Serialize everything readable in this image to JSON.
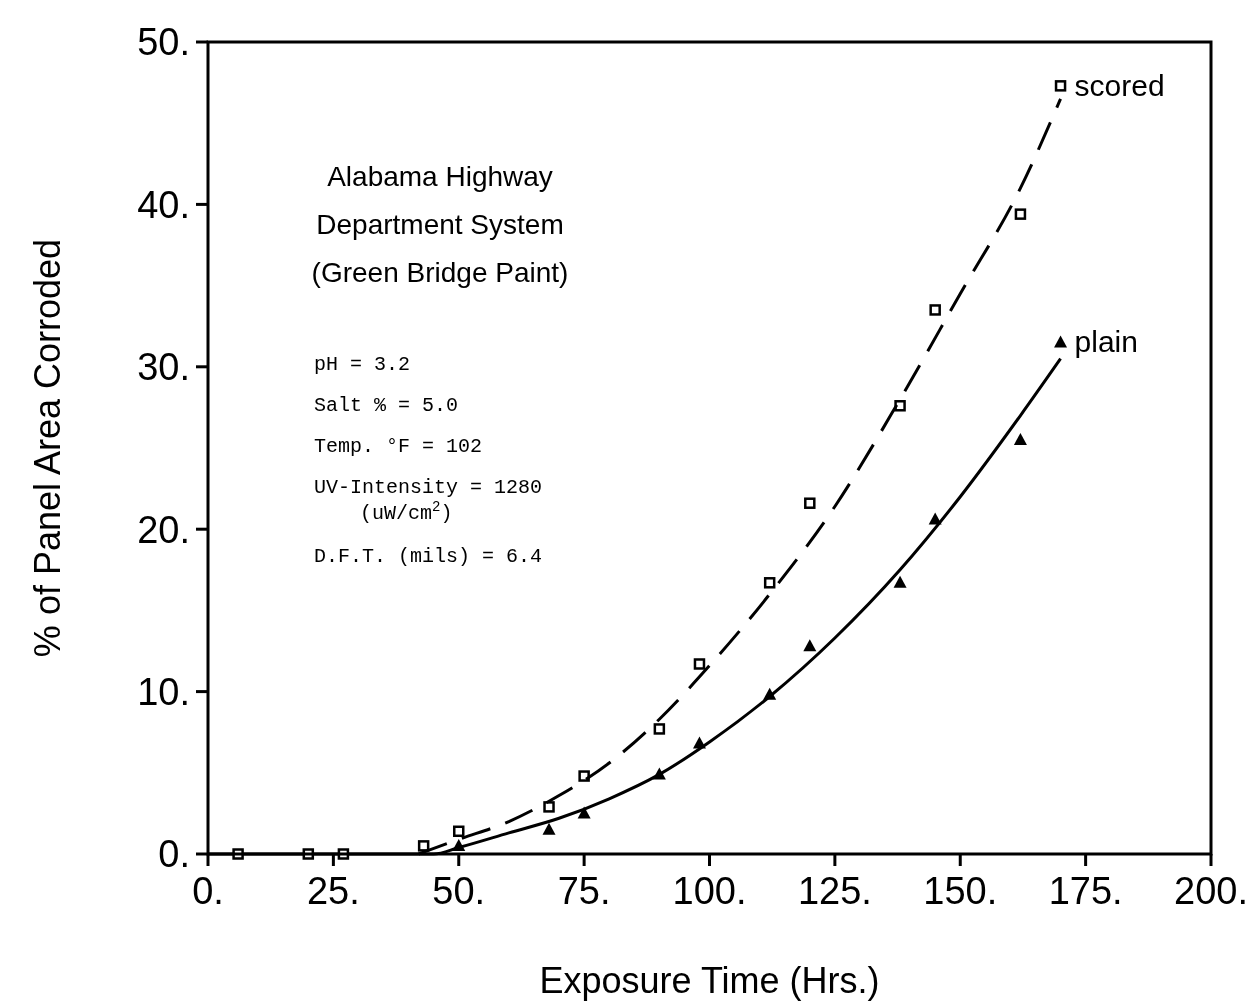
{
  "chart_data": {
    "type": "scatter",
    "title": "Alabama Highway\nDepartment System\n(Green Bridge Paint)",
    "xlabel": "Exposure Time (Hrs.)",
    "ylabel": "% of Panel Area Corroded",
    "xlim": [
      0,
      200
    ],
    "ylim": [
      0,
      50
    ],
    "xticks": [
      {
        "value": 0,
        "label": "0."
      },
      {
        "value": 25,
        "label": "25."
      },
      {
        "value": 50,
        "label": "50."
      },
      {
        "value": 75,
        "label": "75."
      },
      {
        "value": 100,
        "label": "100."
      },
      {
        "value": 125,
        "label": "125."
      },
      {
        "value": 150,
        "label": "150."
      },
      {
        "value": 175,
        "label": "175."
      },
      {
        "value": 200,
        "label": "200."
      }
    ],
    "yticks": [
      {
        "value": 0,
        "label": "0."
      },
      {
        "value": 10,
        "label": "10."
      },
      {
        "value": 20,
        "label": "20."
      },
      {
        "value": 30,
        "label": "30."
      },
      {
        "value": 40,
        "label": "40."
      },
      {
        "value": 50,
        "label": "50."
      }
    ],
    "grid": false,
    "annotations": [
      "pH = 3.2",
      "Salt % = 5.0",
      "Temp. °F = 102",
      "UV-Intensity = 1280\n(uW/cm$^{2}$)",
      "D.F.T. (mils) = 6.4"
    ],
    "series": [
      {
        "name": "scored",
        "color": "#000000",
        "marker": "square",
        "x": [
          6,
          20,
          27,
          43,
          50,
          68,
          75,
          90,
          98,
          112,
          120,
          138,
          145,
          162,
          170
        ],
        "values": [
          0,
          0,
          0,
          0.5,
          1.4,
          2.9,
          4.8,
          7.7,
          11.7,
          16.7,
          21.6,
          27.6,
          33.5,
          39.4,
          47.3
        ]
      },
      {
        "name": "plain",
        "color": "#000000",
        "marker": "triangle",
        "x": [
          50,
          68,
          75,
          90,
          98,
          112,
          120,
          138,
          145,
          162,
          170
        ],
        "values": [
          0.5,
          1.5,
          2.5,
          4.9,
          6.8,
          9.8,
          12.8,
          16.7,
          20.6,
          25.5,
          31.5
        ]
      },
      {
        "type": "line",
        "color": "#000000",
        "line_style": "dashed",
        "x": [
          42,
          50,
          60,
          70,
          80,
          90,
          100,
          112,
          125,
          138,
          150,
          162,
          170
        ],
        "values": [
          0,
          0.9,
          2.0,
          3.6,
          5.6,
          8.3,
          11.6,
          16.0,
          21.4,
          28.0,
          34.5,
          41.0,
          46.5
        ]
      },
      {
        "type": "line",
        "color": "#000000",
        "line_style": "solid",
        "x": [
          0,
          45,
          50,
          60,
          70,
          80,
          90,
          100,
          112,
          125,
          138,
          150,
          162,
          170
        ],
        "values": [
          0,
          0,
          0.4,
          1.3,
          2.2,
          3.4,
          4.9,
          6.9,
          9.7,
          13.3,
          17.5,
          22.0,
          27.0,
          30.5
        ]
      }
    ]
  }
}
